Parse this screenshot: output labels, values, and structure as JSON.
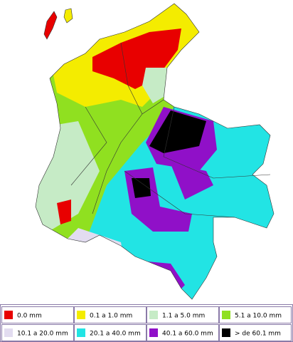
{
  "legend": {
    "items": [
      {
        "label": "0.0 mm",
        "color": "#e80000"
      },
      {
        "label": "0.1 a 1.0 mm",
        "color": "#f4ec00"
      },
      {
        "label": "1.1 a 5.0 mm",
        "color": "#c6ebc6"
      },
      {
        "label": "5.1 a 10.0 mm",
        "color": "#90e020"
      },
      {
        "label": "10.1 a 20.0 mm",
        "color": "#e2dcf0"
      },
      {
        "label": "20.1 a 40.0 mm",
        "color": "#22e4e4"
      },
      {
        "label": "40.1 a 60.0 mm",
        "color": "#9010c8"
      },
      {
        "label": "> de 60.1 mm",
        "color": "#000000"
      }
    ]
  }
}
